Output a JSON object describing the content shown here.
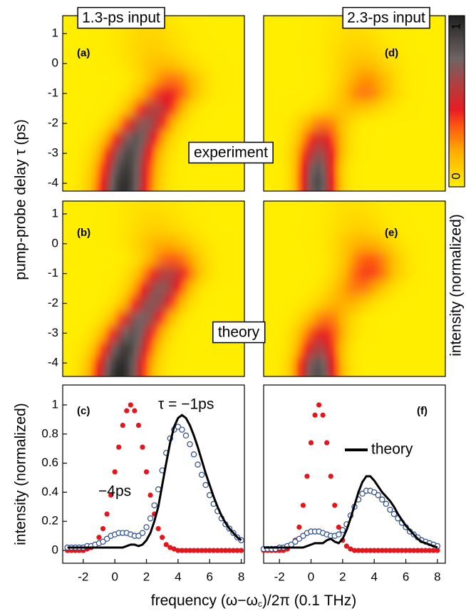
{
  "ylabel": "pump-probe delay τ  (ps)",
  "column_titles": [
    "1.3-ps input",
    "2.3-ps input"
  ],
  "row_labels": [
    "experiment",
    "theory"
  ],
  "xlabel": [
    "frequency (ω−ω",
    "c",
    ")/2π  (0.1 THz)"
  ],
  "colorbar": {
    "label": "intensity (normalized)",
    "ticks": [
      0,
      1
    ],
    "colors": [
      {
        "value": 0,
        "color": "#ffee00"
      },
      {
        "value": 0.2,
        "color": "#ffb000"
      },
      {
        "value": 0.35,
        "color": "#ff5a10"
      },
      {
        "value": 0.45,
        "color": "#e81c24"
      },
      {
        "value": 0.6,
        "color": "#b04040"
      },
      {
        "value": 0.75,
        "color": "#6e6464"
      },
      {
        "value": 1,
        "color": "#202020"
      }
    ]
  },
  "chart_data": [
    {
      "type": "heatmap",
      "label": "(a)",
      "xlim": [
        -3.3,
        8.2
      ],
      "ylim": [
        -4.26,
        1.6
      ],
      "yticks": [
        -4,
        -3,
        -2,
        -1,
        0,
        1
      ],
      "tau": [
        -4.5,
        -4,
        -3.5,
        -3,
        -2.5,
        -2,
        -1.5,
        -1,
        -0.5,
        0,
        0.5,
        1,
        1.5
      ],
      "peak": [
        0.5,
        0.6,
        0.7,
        0.9,
        1.3,
        1.9,
        2.6,
        3.3,
        3.6,
        3.0,
        2.4,
        2.2,
        2.0
      ],
      "intensity": [
        0.95,
        0.95,
        0.9,
        0.85,
        0.8,
        0.7,
        0.6,
        0.45,
        0.3,
        0.15,
        0.1,
        0.08,
        0.05
      ],
      "width": [
        1.1,
        1.1,
        1.1,
        1.1,
        1.1,
        1.1,
        1.1,
        1.2,
        1.2,
        1.4,
        1.4,
        1.4,
        1.4
      ]
    },
    {
      "type": "heatmap",
      "label": "(d)",
      "xlim": [
        -3.0,
        8.5
      ],
      "ylim": [
        -4.26,
        1.6
      ],
      "tau": [
        -4.5,
        -4,
        -3.5,
        -3,
        -2.5,
        -2,
        -1.5,
        -1,
        -0.5,
        0,
        0.5,
        1,
        1.5
      ],
      "peak": [
        0.4,
        0.4,
        0.4,
        0.5,
        0.6,
        0.8,
        2.5,
        3.4,
        3.5,
        3.3,
        3.0,
        2.8,
        2.6
      ],
      "intensity": [
        0.8,
        0.85,
        0.8,
        0.65,
        0.5,
        0.3,
        0.15,
        0.3,
        0.25,
        0.15,
        0.1,
        0.06,
        0.04
      ],
      "width": [
        0.8,
        0.8,
        0.8,
        0.9,
        0.9,
        1.0,
        1.5,
        1.2,
        1.2,
        1.3,
        1.3,
        1.3,
        1.3
      ]
    },
    {
      "type": "heatmap",
      "label": "(b)",
      "xlim": [
        -3.3,
        8.2
      ],
      "ylim": [
        -4.45,
        1.43
      ],
      "yticks": [
        -4,
        -3,
        -2,
        -1,
        0,
        1
      ],
      "tau": [
        -4.5,
        -4,
        -3.5,
        -3,
        -2.5,
        -2,
        -1.5,
        -1,
        -0.5,
        0,
        0.5,
        1,
        1.5
      ],
      "peak": [
        0.3,
        0.4,
        0.7,
        1.1,
        1.7,
        2.4,
        2.9,
        3.4,
        3.6,
        3.2,
        2.7,
        2.4,
        2.2
      ],
      "intensity": [
        1,
        0.95,
        0.9,
        0.8,
        0.75,
        0.7,
        0.7,
        0.6,
        0.35,
        0.2,
        0.1,
        0.06,
        0.04
      ],
      "width": [
        1.1,
        1.1,
        1.1,
        1.1,
        1.1,
        1.1,
        1.1,
        1.2,
        1.2,
        1.4,
        1.4,
        1.4,
        1.4
      ]
    },
    {
      "type": "heatmap",
      "label": "(e)",
      "xlim": [
        -3.0,
        8.5
      ],
      "ylim": [
        -4.45,
        1.43
      ],
      "tau": [
        -4.5,
        -4,
        -3.5,
        -3,
        -2.5,
        -2,
        -1.5,
        -1,
        -0.5,
        0,
        0.5,
        1,
        1.5
      ],
      "peak": [
        0.4,
        0.4,
        0.5,
        0.7,
        1.0,
        2.0,
        3.0,
        3.6,
        3.7,
        3.4,
        3.0,
        2.8,
        2.6
      ],
      "intensity": [
        0.85,
        0.8,
        0.6,
        0.45,
        0.3,
        0.2,
        0.3,
        0.4,
        0.35,
        0.2,
        0.1,
        0.06,
        0.04
      ],
      "width": [
        0.9,
        0.9,
        0.9,
        1.0,
        1.0,
        1.2,
        1.2,
        1.2,
        1.2,
        1.3,
        1.3,
        1.3,
        1.3
      ]
    },
    {
      "type": "line",
      "label": "(c)",
      "ylabel": "intensity (normalized)",
      "annotations": [
        "τ = −1ps",
        "−4ps"
      ],
      "xlim": [
        -3.3,
        8.2
      ],
      "ylim": [
        -0.088,
        1.137
      ],
      "xticks": [
        -2,
        0,
        2,
        4,
        6,
        8
      ],
      "yticks": [
        0,
        0.2,
        0.4,
        0.6,
        0.8,
        1
      ],
      "x": [
        -3,
        -2.75,
        -2.5,
        -2.25,
        -2,
        -1.75,
        -1.5,
        -1.25,
        -1,
        -0.75,
        -0.5,
        -0.25,
        0,
        0.25,
        0.5,
        0.75,
        1,
        1.25,
        1.5,
        1.75,
        2,
        2.25,
        2.5,
        2.75,
        3,
        3.25,
        3.5,
        3.75,
        4,
        4.25,
        4.5,
        4.75,
        5,
        5.25,
        5.5,
        5.75,
        6,
        6.25,
        6.5,
        6.75,
        7,
        7.25,
        7.5,
        7.75,
        8
      ],
      "series": [
        {
          "color": "#e8141c",
          "marker": "dot",
          "values": [
            0,
            0,
            0,
            0,
            0,
            0.01,
            0.02,
            0.04,
            0.09,
            0.15,
            0.25,
            0.38,
            0.54,
            0.71,
            0.86,
            0.96,
            1,
            0.96,
            0.86,
            0.71,
            0.54,
            0.38,
            0.25,
            0.15,
            0.09,
            0.04,
            0.02,
            0.01,
            0,
            0,
            0,
            0,
            0,
            0,
            0,
            0,
            0,
            0,
            0,
            0,
            0,
            0,
            0,
            0,
            0
          ]
        },
        {
          "color": "#2b4a8a",
          "marker": "circle",
          "values": [
            0.02,
            0.02,
            0.02,
            0.02,
            0.02,
            0.03,
            0.03,
            0.04,
            0.05,
            0.06,
            0.08,
            0.1,
            0.11,
            0.12,
            0.12,
            0.12,
            0.11,
            0.1,
            0.1,
            0.12,
            0.16,
            0.22,
            0.31,
            0.42,
            0.55,
            0.67,
            0.77,
            0.83,
            0.85,
            0.83,
            0.79,
            0.73,
            0.66,
            0.59,
            0.52,
            0.45,
            0.38,
            0.32,
            0.27,
            0.22,
            0.18,
            0.15,
            0.12,
            0.09,
            0.07
          ]
        },
        {
          "color": "#000000",
          "marker": "line",
          "values": [
            0.02,
            0.02,
            0.02,
            0.02,
            0.02,
            0.02,
            0.02,
            0.02,
            0.02,
            0.02,
            0.02,
            0.02,
            0.02,
            0.02,
            0.02,
            0.03,
            0.04,
            0.04,
            0.03,
            0.04,
            0.07,
            0.12,
            0.2,
            0.3,
            0.45,
            0.6,
            0.74,
            0.85,
            0.91,
            0.93,
            0.91,
            0.86,
            0.79,
            0.71,
            0.62,
            0.53,
            0.45,
            0.37,
            0.3,
            0.24,
            0.19,
            0.15,
            0.12,
            0.09,
            0.07
          ]
        }
      ]
    },
    {
      "type": "line",
      "label": "(f)",
      "xlim": [
        -3.0,
        8.5
      ],
      "ylim": [
        -0.088,
        1.137
      ],
      "xticks": [
        -2,
        0,
        2,
        4,
        6,
        8
      ],
      "x": [
        -3,
        -2.75,
        -2.5,
        -2.25,
        -2,
        -1.75,
        -1.5,
        -1.25,
        -1,
        -0.75,
        -0.5,
        -0.25,
        0,
        0.25,
        0.5,
        0.75,
        1,
        1.25,
        1.5,
        1.75,
        2,
        2.25,
        2.5,
        2.75,
        3,
        3.25,
        3.5,
        3.75,
        4,
        4.25,
        4.5,
        4.75,
        5,
        5.25,
        5.5,
        5.75,
        6,
        6.25,
        6.5,
        6.75,
        7,
        7.25,
        7.5,
        7.75,
        8
      ],
      "series": [
        {
          "color": "#e8141c",
          "marker": "dot",
          "values": [
            0,
            0,
            0,
            0,
            0,
            0,
            0.01,
            0.03,
            0.07,
            0.16,
            0.31,
            0.51,
            0.74,
            0.93,
            1,
            0.93,
            0.74,
            0.51,
            0.31,
            0.16,
            0.07,
            0.03,
            0.01,
            0,
            0,
            0,
            0,
            0,
            0,
            0,
            0,
            0,
            0,
            0,
            0,
            0,
            0,
            0,
            0,
            0,
            0,
            0,
            0,
            0,
            0
          ]
        },
        {
          "color": "#2b4a8a",
          "marker": "circle",
          "values": [
            0.01,
            0.01,
            0.01,
            0.01,
            0.02,
            0.02,
            0.03,
            0.04,
            0.06,
            0.08,
            0.1,
            0.12,
            0.13,
            0.13,
            0.13,
            0.12,
            0.11,
            0.1,
            0.1,
            0.11,
            0.14,
            0.18,
            0.24,
            0.3,
            0.35,
            0.39,
            0.41,
            0.41,
            0.4,
            0.38,
            0.35,
            0.32,
            0.28,
            0.25,
            0.22,
            0.19,
            0.16,
            0.13,
            0.11,
            0.09,
            0.07,
            0.06,
            0.05,
            0.04,
            0.03
          ]
        },
        {
          "name": "theory",
          "color": "#000000",
          "marker": "line",
          "values": [
            0.02,
            0.02,
            0.02,
            0.02,
            0.02,
            0.02,
            0.02,
            0.02,
            0.02,
            0.02,
            0.02,
            0.03,
            0.04,
            0.05,
            0.05,
            0.05,
            0.07,
            0.08,
            0.06,
            0.05,
            0.08,
            0.14,
            0.22,
            0.31,
            0.4,
            0.47,
            0.51,
            0.51,
            0.48,
            0.44,
            0.4,
            0.37,
            0.34,
            0.3,
            0.25,
            0.21,
            0.17,
            0.14,
            0.11,
            0.08,
            0.06,
            0.05,
            0.04,
            0.03,
            0.02
          ]
        }
      ]
    }
  ]
}
